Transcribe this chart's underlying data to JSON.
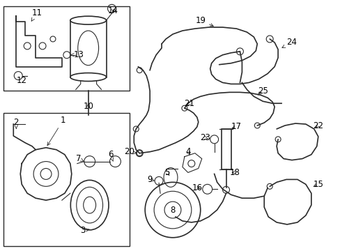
{
  "bg_color": "#ffffff",
  "line_color": "#2a2a2a",
  "label_color": "#000000",
  "figsize": [
    4.89,
    3.6
  ],
  "dpi": 100,
  "font_size": 8.5
}
